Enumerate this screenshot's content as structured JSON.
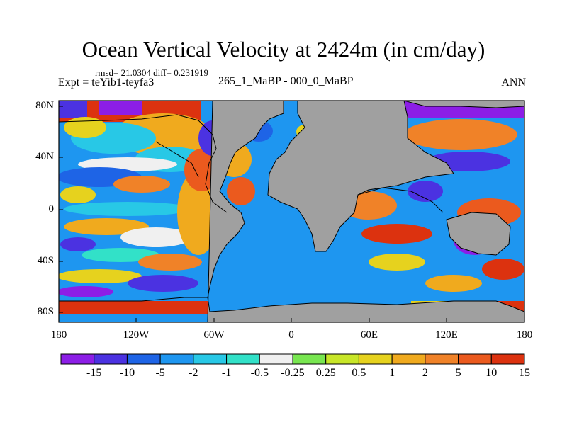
{
  "title": "Ocean Vertical Velocity at 2424m (in cm/day)",
  "stats_line": "rmsd= 21.0304 diff= 0.231919",
  "experiment": "Expt = teYib1-teyfa3",
  "comparison": "265_1_MaBP - 000_0_MaBP",
  "season": "ANN",
  "map": {
    "land_color": "#a0a0a0",
    "lon_range": [
      -180,
      180
    ],
    "lat_range": [
      -90,
      90
    ],
    "y_ticks": [
      "80N",
      "40N",
      "0",
      "40S",
      "80S"
    ],
    "x_ticks": [
      "180",
      "120W",
      "60W",
      "0",
      "60E",
      "120E",
      "180"
    ]
  },
  "colorbar": {
    "colors": [
      "#8c1ee6",
      "#4b32e1",
      "#1e64e6",
      "#1e96f0",
      "#28c8e6",
      "#32e1c8",
      "#f0f0f0",
      "#78e650",
      "#c8e628",
      "#e6d21e",
      "#f0aa1e",
      "#f08228",
      "#eb5a1e",
      "#dc320f"
    ],
    "labels": [
      "-15",
      "-10",
      "-5",
      "-2",
      "-1",
      "-0.5",
      "-0.25",
      "0.25",
      "0.5",
      "1",
      "2",
      "5",
      "10",
      "15"
    ]
  }
}
